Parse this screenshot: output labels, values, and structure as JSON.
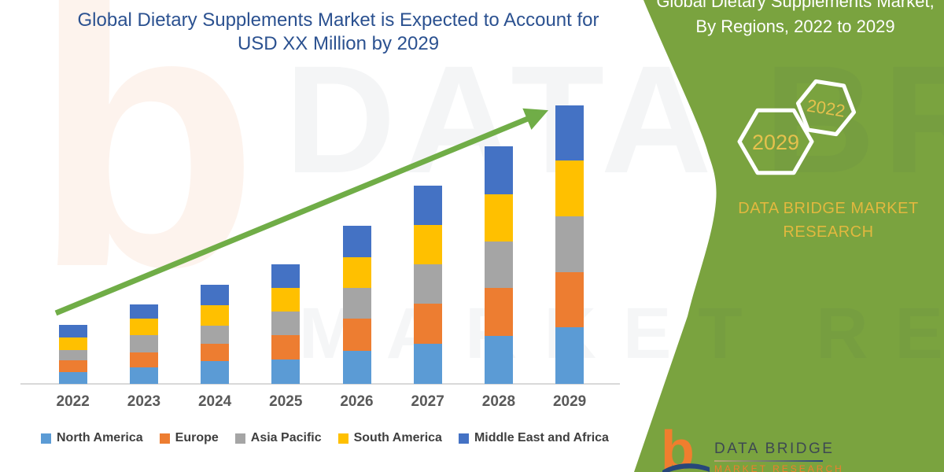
{
  "main": {
    "title_line1": "Global Dietary Supplements Market is Expected to Account for",
    "title_line2": "USD XX Million by 2029"
  },
  "chart_data": {
    "type": "bar",
    "stacked": true,
    "title": "Global Dietary Supplements Market is Expected to Account for USD XX Million by 2029",
    "xlabel": "",
    "ylabel": "",
    "y_axis_shown": false,
    "units": "relative market size (USD XX Million placeholder, values estimated from bar heights)",
    "categories": [
      "2022",
      "2023",
      "2024",
      "2025",
      "2026",
      "2027",
      "2028",
      "2029"
    ],
    "series": [
      {
        "name": "North America",
        "color": "#5B9BD5",
        "values": [
          15,
          21,
          29,
          31,
          42,
          51,
          61,
          72
        ]
      },
      {
        "name": "Europe",
        "color": "#ED7D31",
        "values": [
          15,
          19,
          22,
          31,
          41,
          51,
          61,
          70
        ]
      },
      {
        "name": "Asia Pacific",
        "color": "#A5A5A5",
        "values": [
          13,
          22,
          23,
          30,
          39,
          50,
          59,
          71
        ]
      },
      {
        "name": "South America",
        "color": "#FFC000",
        "values": [
          16,
          21,
          26,
          30,
          39,
          50,
          60,
          71
        ]
      },
      {
        "name": "Middle East and Africa",
        "color": "#4472C4",
        "values": [
          16,
          18,
          26,
          30,
          40,
          50,
          61,
          70
        ]
      }
    ],
    "totals": [
      75,
      101,
      126,
      152,
      201,
      252,
      302,
      354
    ],
    "legend_position": "bottom",
    "grid": false,
    "trend_arrow": {
      "present": true,
      "color": "#70AD47",
      "direction": "up-right"
    }
  },
  "sidebar": {
    "title_line1": "Global Dietary Supplements Market,",
    "title_line2": "By Regions, 2022 to 2029",
    "hexagons": [
      {
        "label": "2029"
      },
      {
        "label": "2022"
      }
    ],
    "brand_line1": "DATA BRIDGE MARKET",
    "brand_line2": "RESEARCH",
    "colors": {
      "background": "#7AA33F",
      "gold": "#E2B83F",
      "hex_year_gold": "#E5C14D",
      "title_white": "#FFFFFF"
    }
  },
  "logo": {
    "monogram": "b",
    "text": "DATA BRIDGE",
    "sub": "MARKET RESEARCH",
    "colors": {
      "orange": "#F07E2E",
      "navy": "#27477A",
      "wordmark_gray": "#3D4852"
    }
  },
  "watermark": {
    "monogram": "b",
    "row1": "DATA BRIDGE",
    "row2": "MARKET RESEARCH"
  },
  "colors": {
    "chart_title_navy": "#2B5190",
    "axis_label_gray": "#595959",
    "legend_text": "#3F3F3F",
    "axis_line": "#D9D9D9",
    "arrow_green": "#70AD47"
  }
}
